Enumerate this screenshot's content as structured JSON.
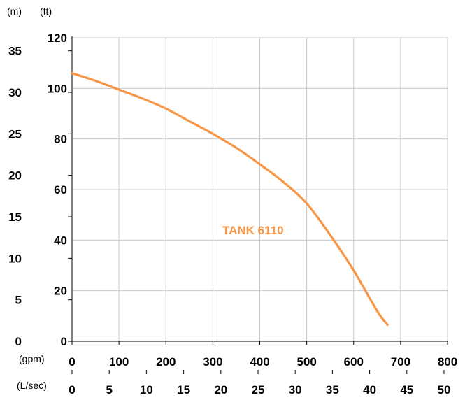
{
  "chart_data": {
    "type": "line",
    "units": {
      "y_left": "(m)",
      "y_right": "(ft)",
      "x_bottom": "(gpm)",
      "x_lower": "(L/sec)"
    },
    "x_gpm_ticks": [
      "0",
      "100",
      "200",
      "300",
      "400",
      "500",
      "600",
      "700",
      "800"
    ],
    "x_lsec_ticks": [
      "0",
      "5",
      "10",
      "15",
      "20",
      "25",
      "30",
      "35",
      "40",
      "45",
      "50"
    ],
    "y_ft_ticks": [
      "0",
      "20",
      "40",
      "60",
      "80",
      "100",
      "120"
    ],
    "y_m_ticks": [
      "0",
      "5",
      "10",
      "15",
      "20",
      "25",
      "30",
      "35"
    ],
    "xlim_gpm": [
      0,
      800
    ],
    "ylim_ft": [
      0,
      120
    ],
    "grid": true,
    "colors": {
      "series": "#F79646",
      "grid": "#C8C8C8",
      "axis": "#000000"
    },
    "series": [
      {
        "name": "TANK 6110",
        "x": [
          0,
          50,
          100,
          150,
          200,
          250,
          300,
          350,
          400,
          450,
          500,
          550,
          600,
          650,
          672
        ],
        "y": [
          106,
          103,
          99.5,
          96,
          92,
          87,
          82,
          76.5,
          70,
          63,
          54.5,
          42,
          28,
          12,
          6.5
        ]
      }
    ]
  }
}
